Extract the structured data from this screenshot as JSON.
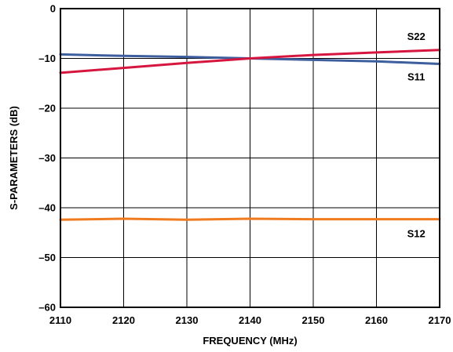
{
  "chart_data": {
    "type": "line",
    "title": "",
    "xlabel": "FREQUENCY (MHz)",
    "ylabel": "S-PARAMETERS (dB)",
    "xlim": [
      2110,
      2170
    ],
    "ylim": [
      -60,
      0
    ],
    "xticks": [
      2110,
      2120,
      2130,
      2140,
      2150,
      2160,
      2170
    ],
    "yticks": [
      0,
      -10,
      -20,
      -30,
      -40,
      -50,
      -60
    ],
    "xtick_labels": [
      "2110",
      "2120",
      "2130",
      "2140",
      "2150",
      "2160",
      "2170"
    ],
    "ytick_labels": [
      "0",
      "–10",
      "–20",
      "–30",
      "–40",
      "–50",
      "–60"
    ],
    "grid": true,
    "legend": "none",
    "series": [
      {
        "name": "S11",
        "color": "#3d5f9e",
        "x": [
          2110,
          2120,
          2130,
          2140,
          2150,
          2160,
          2170
        ],
        "y": [
          -9.2,
          -9.5,
          -9.7,
          -10.0,
          -10.3,
          -10.6,
          -11.1
        ]
      },
      {
        "name": "S22",
        "color": "#d6163f",
        "x": [
          2110,
          2120,
          2130,
          2140,
          2150,
          2160,
          2170
        ],
        "y": [
          -12.9,
          -11.9,
          -10.9,
          -10.0,
          -9.3,
          -8.8,
          -8.3
        ]
      },
      {
        "name": "S12",
        "color": "#f07a1e",
        "x": [
          2110,
          2120,
          2130,
          2140,
          2150,
          2160,
          2170
        ],
        "y": [
          -42.4,
          -42.2,
          -42.4,
          -42.2,
          -42.3,
          -42.3,
          -42.3
        ]
      }
    ],
    "annotations": [
      {
        "text": "S22",
        "series": "S22"
      },
      {
        "text": "S11",
        "series": "S11"
      },
      {
        "text": "S12",
        "series": "S12"
      }
    ]
  }
}
